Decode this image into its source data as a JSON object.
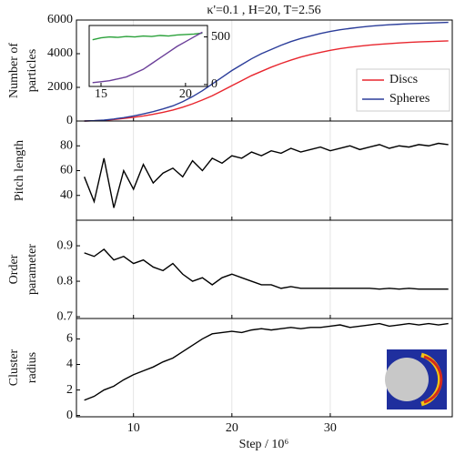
{
  "chart_data": [
    {
      "type": "line",
      "title": "κ'=0.1 , H=20, T=2.56",
      "ylabel": [
        "Number of",
        "particles"
      ],
      "x": [
        5,
        6,
        7,
        8,
        9,
        10,
        11,
        12,
        13,
        14,
        15,
        16,
        17,
        18,
        19,
        20,
        21,
        22,
        23,
        24,
        25,
        26,
        27,
        28,
        29,
        30,
        31,
        32,
        33,
        34,
        35,
        36,
        37,
        38,
        39,
        40,
        41,
        42
      ],
      "ylim": [
        0,
        6000
      ],
      "yticks": [
        0,
        2000,
        4000,
        6000
      ],
      "legend": "lower right",
      "series": [
        {
          "name": "Discs",
          "color": "#e8262e",
          "values": [
            0,
            15,
            40,
            90,
            150,
            220,
            300,
            400,
            520,
            650,
            820,
            1020,
            1250,
            1500,
            1800,
            2100,
            2400,
            2700,
            2950,
            3200,
            3420,
            3620,
            3800,
            3950,
            4080,
            4200,
            4300,
            4380,
            4450,
            4510,
            4560,
            4600,
            4640,
            4670,
            4700,
            4720,
            4740,
            4760
          ]
        },
        {
          "name": "Spheres",
          "color": "#2b3d9a",
          "values": [
            0,
            20,
            60,
            120,
            200,
            300,
            420,
            560,
            720,
            900,
            1150,
            1450,
            1800,
            2200,
            2600,
            3000,
            3350,
            3700,
            4000,
            4250,
            4500,
            4720,
            4900,
            5050,
            5200,
            5320,
            5420,
            5500,
            5570,
            5630,
            5680,
            5720,
            5750,
            5780,
            5800,
            5820,
            5840,
            5860
          ]
        }
      ]
    },
    {
      "type": "line",
      "ylabel": [
        "Pitch length"
      ],
      "x": [
        5,
        6,
        7,
        8,
        9,
        10,
        11,
        12,
        13,
        14,
        15,
        16,
        17,
        18,
        19,
        20,
        21,
        22,
        23,
        24,
        25,
        26,
        27,
        28,
        29,
        30,
        31,
        32,
        33,
        34,
        35,
        36,
        37,
        38,
        39,
        40,
        41,
        42
      ],
      "ylim": [
        20,
        100
      ],
      "yticks": [
        40,
        60,
        80
      ],
      "series": [
        {
          "color": "#000000",
          "values": [
            55,
            35,
            70,
            30,
            60,
            45,
            65,
            50,
            58,
            62,
            55,
            68,
            60,
            70,
            66,
            72,
            70,
            75,
            72,
            76,
            74,
            78,
            75,
            77,
            79,
            76,
            78,
            80,
            77,
            79,
            81,
            78,
            80,
            79,
            81,
            80,
            82,
            81
          ]
        }
      ]
    },
    {
      "type": "line",
      "ylabel": [
        "Order",
        "parameter"
      ],
      "x": [
        5,
        6,
        7,
        8,
        9,
        10,
        11,
        12,
        13,
        14,
        15,
        16,
        17,
        18,
        19,
        20,
        21,
        22,
        23,
        24,
        25,
        26,
        27,
        28,
        29,
        30,
        31,
        32,
        33,
        34,
        35,
        36,
        37,
        38,
        39,
        40,
        41,
        42
      ],
      "ylim": [
        0.695,
        0.972
      ],
      "yticks": [
        0.7,
        0.8,
        0.9
      ],
      "series": [
        {
          "color": "#000000",
          "values": [
            0.88,
            0.87,
            0.89,
            0.86,
            0.87,
            0.85,
            0.86,
            0.84,
            0.83,
            0.85,
            0.82,
            0.8,
            0.81,
            0.79,
            0.81,
            0.82,
            0.81,
            0.8,
            0.79,
            0.79,
            0.78,
            0.785,
            0.78,
            0.78,
            0.78,
            0.78,
            0.78,
            0.78,
            0.78,
            0.78,
            0.778,
            0.78,
            0.778,
            0.78,
            0.778,
            0.778,
            0.778,
            0.778
          ]
        }
      ]
    },
    {
      "type": "line",
      "ylabel": [
        "Cluster",
        "radius"
      ],
      "xlabel": "Step / 10⁶",
      "x": [
        5,
        6,
        7,
        8,
        9,
        10,
        11,
        12,
        13,
        14,
        15,
        16,
        17,
        18,
        19,
        20,
        21,
        22,
        23,
        24,
        25,
        26,
        27,
        28,
        29,
        30,
        31,
        32,
        33,
        34,
        35,
        36,
        37,
        38,
        39,
        40,
        41,
        42
      ],
      "xlim": [
        4.2,
        42.4
      ],
      "xticks": [
        10,
        20,
        30
      ],
      "grid": true,
      "ylim": [
        -0.1,
        7.6
      ],
      "yticks": [
        0,
        2,
        4,
        6
      ],
      "series": [
        {
          "color": "#000000",
          "values": [
            1.2,
            1.5,
            2.0,
            2.3,
            2.8,
            3.2,
            3.5,
            3.8,
            4.2,
            4.5,
            5.0,
            5.5,
            6.0,
            6.4,
            6.5,
            6.6,
            6.5,
            6.7,
            6.8,
            6.7,
            6.8,
            6.9,
            6.8,
            6.9,
            6.9,
            7.0,
            7.1,
            6.9,
            7.0,
            7.1,
            7.2,
            7.0,
            7.1,
            7.2,
            7.1,
            7.2,
            7.1,
            7.2
          ]
        }
      ]
    },
    {
      "type": "line",
      "x": [
        14.5,
        15,
        15.5,
        16,
        16.5,
        17,
        17.5,
        18,
        18.5,
        19,
        19.5,
        20,
        20.5,
        21
      ],
      "xlim": [
        14.3,
        21.3
      ],
      "xticks": [
        15,
        20
      ],
      "ylim": [
        -20,
        620
      ],
      "yticks": [
        0,
        500
      ],
      "yaxis_side": "right",
      "series": [
        {
          "color": "#2aa13a",
          "values": [
            470,
            490,
            500,
            495,
            505,
            500,
            510,
            505,
            515,
            510,
            520,
            525,
            530,
            540
          ]
        },
        {
          "color": "#6b3f99",
          "values": [
            20,
            30,
            40,
            60,
            80,
            120,
            160,
            220,
            280,
            340,
            400,
            450,
            500,
            550
          ]
        }
      ]
    }
  ]
}
